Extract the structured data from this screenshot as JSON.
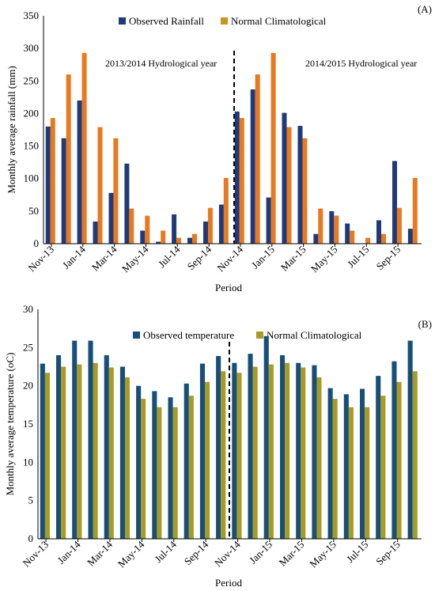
{
  "colors": {
    "observed": "#1f3a7a",
    "normal_a": "#e8791e",
    "normal_a_legend": "#c8961e",
    "observed_b": "#174f7a",
    "normal_b": "#a89a26"
  },
  "chart_data": [
    {
      "type": "bar",
      "panel_label": "(A)",
      "ylabel": "Monthly average rainfall (mm)",
      "xlabel": "Period",
      "ylim": [
        0,
        350
      ],
      "yticks": [
        "0",
        "50",
        "100",
        "150",
        "200",
        "250",
        "300",
        "350"
      ],
      "legend_position": "top",
      "categories": [
        "Nov-13",
        "Dec-13",
        "Jan-14",
        "Feb-14",
        "Mar-14",
        "Apr-14",
        "May-14",
        "Jun-14",
        "Jul-14",
        "Aug-14",
        "Sep-14",
        "Oct-14",
        "Nov-14",
        "Dec-14",
        "Jan-15",
        "Feb-15",
        "Mar-15",
        "Apr-15",
        "May-15",
        "Jun-15",
        "Jul-15",
        "Aug-15",
        "Sep-15",
        "Oct-15"
      ],
      "tick_labels": [
        "Nov-13",
        "Jan-14",
        "Mar-14",
        "May-14",
        "Jul-14",
        "Sep-14",
        "Nov-14",
        "Jan-15",
        "Mar-15",
        "May-15",
        "Jul-15",
        "Sep-15"
      ],
      "series": [
        {
          "name": "Observed Rainfall",
          "values": [
            180,
            162,
            220,
            34,
            78,
            123,
            20,
            3,
            45,
            9,
            34,
            60,
            203,
            237,
            71,
            201,
            181,
            15,
            50,
            31,
            0,
            36,
            127,
            23
          ]
        },
        {
          "name": "Normal Climatological",
          "values": [
            193,
            260,
            293,
            179,
            162,
            54,
            43,
            20,
            9,
            15,
            55,
            101,
            193,
            260,
            293,
            179,
            162,
            54,
            43,
            20,
            9,
            15,
            55,
            101
          ]
        }
      ],
      "annotations": [
        "2013/2014 Hydrological year",
        "2014/2015 Hydrological year"
      ]
    },
    {
      "type": "bar",
      "panel_label": "(B)",
      "ylabel": "Monthly average temperature (oC)",
      "xlabel": "Period",
      "ylim": [
        0,
        30
      ],
      "yticks": [
        "0",
        "5",
        "10",
        "15",
        "20",
        "25",
        "30"
      ],
      "legend_position": "top",
      "categories": [
        "Nov-13",
        "Dec-13",
        "Jan-14",
        "Feb-14",
        "Mar-14",
        "Apr-14",
        "May-14",
        "Jun-14",
        "Jul-14",
        "Aug-14",
        "Sep-14",
        "Oct-14",
        "Nov-14",
        "Dec-14",
        "Jan-15",
        "Feb-15",
        "Mar-15",
        "Apr-15",
        "May-15",
        "Jun-15",
        "Jul-15",
        "Aug-15",
        "Sep-15",
        "Oct-15"
      ],
      "tick_labels": [
        "Nov-13",
        "Jan-14",
        "Mar-14",
        "May-14",
        "Jul-14",
        "Sep-14",
        "Nov-14",
        "Jan-15",
        "Mar-15",
        "May-15",
        "Jul-15",
        "Sep-15"
      ],
      "series": [
        {
          "name": "Observed temperature",
          "values": [
            22.9,
            24.0,
            25.9,
            25.9,
            24.0,
            22.5,
            20.0,
            19.3,
            18.5,
            20.3,
            22.9,
            23.9,
            23.0,
            24.2,
            26.5,
            24.0,
            23.0,
            22.7,
            19.7,
            18.9,
            19.6,
            21.3,
            23.2,
            25.9
          ]
        },
        {
          "name": "Normal Climatological",
          "values": [
            21.7,
            22.5,
            22.8,
            23.0,
            22.4,
            21.1,
            18.3,
            17.2,
            17.2,
            18.7,
            20.5,
            21.9,
            21.7,
            22.5,
            22.8,
            23.0,
            22.4,
            21.1,
            18.3,
            17.2,
            17.2,
            18.7,
            20.5,
            21.9
          ]
        }
      ]
    }
  ]
}
